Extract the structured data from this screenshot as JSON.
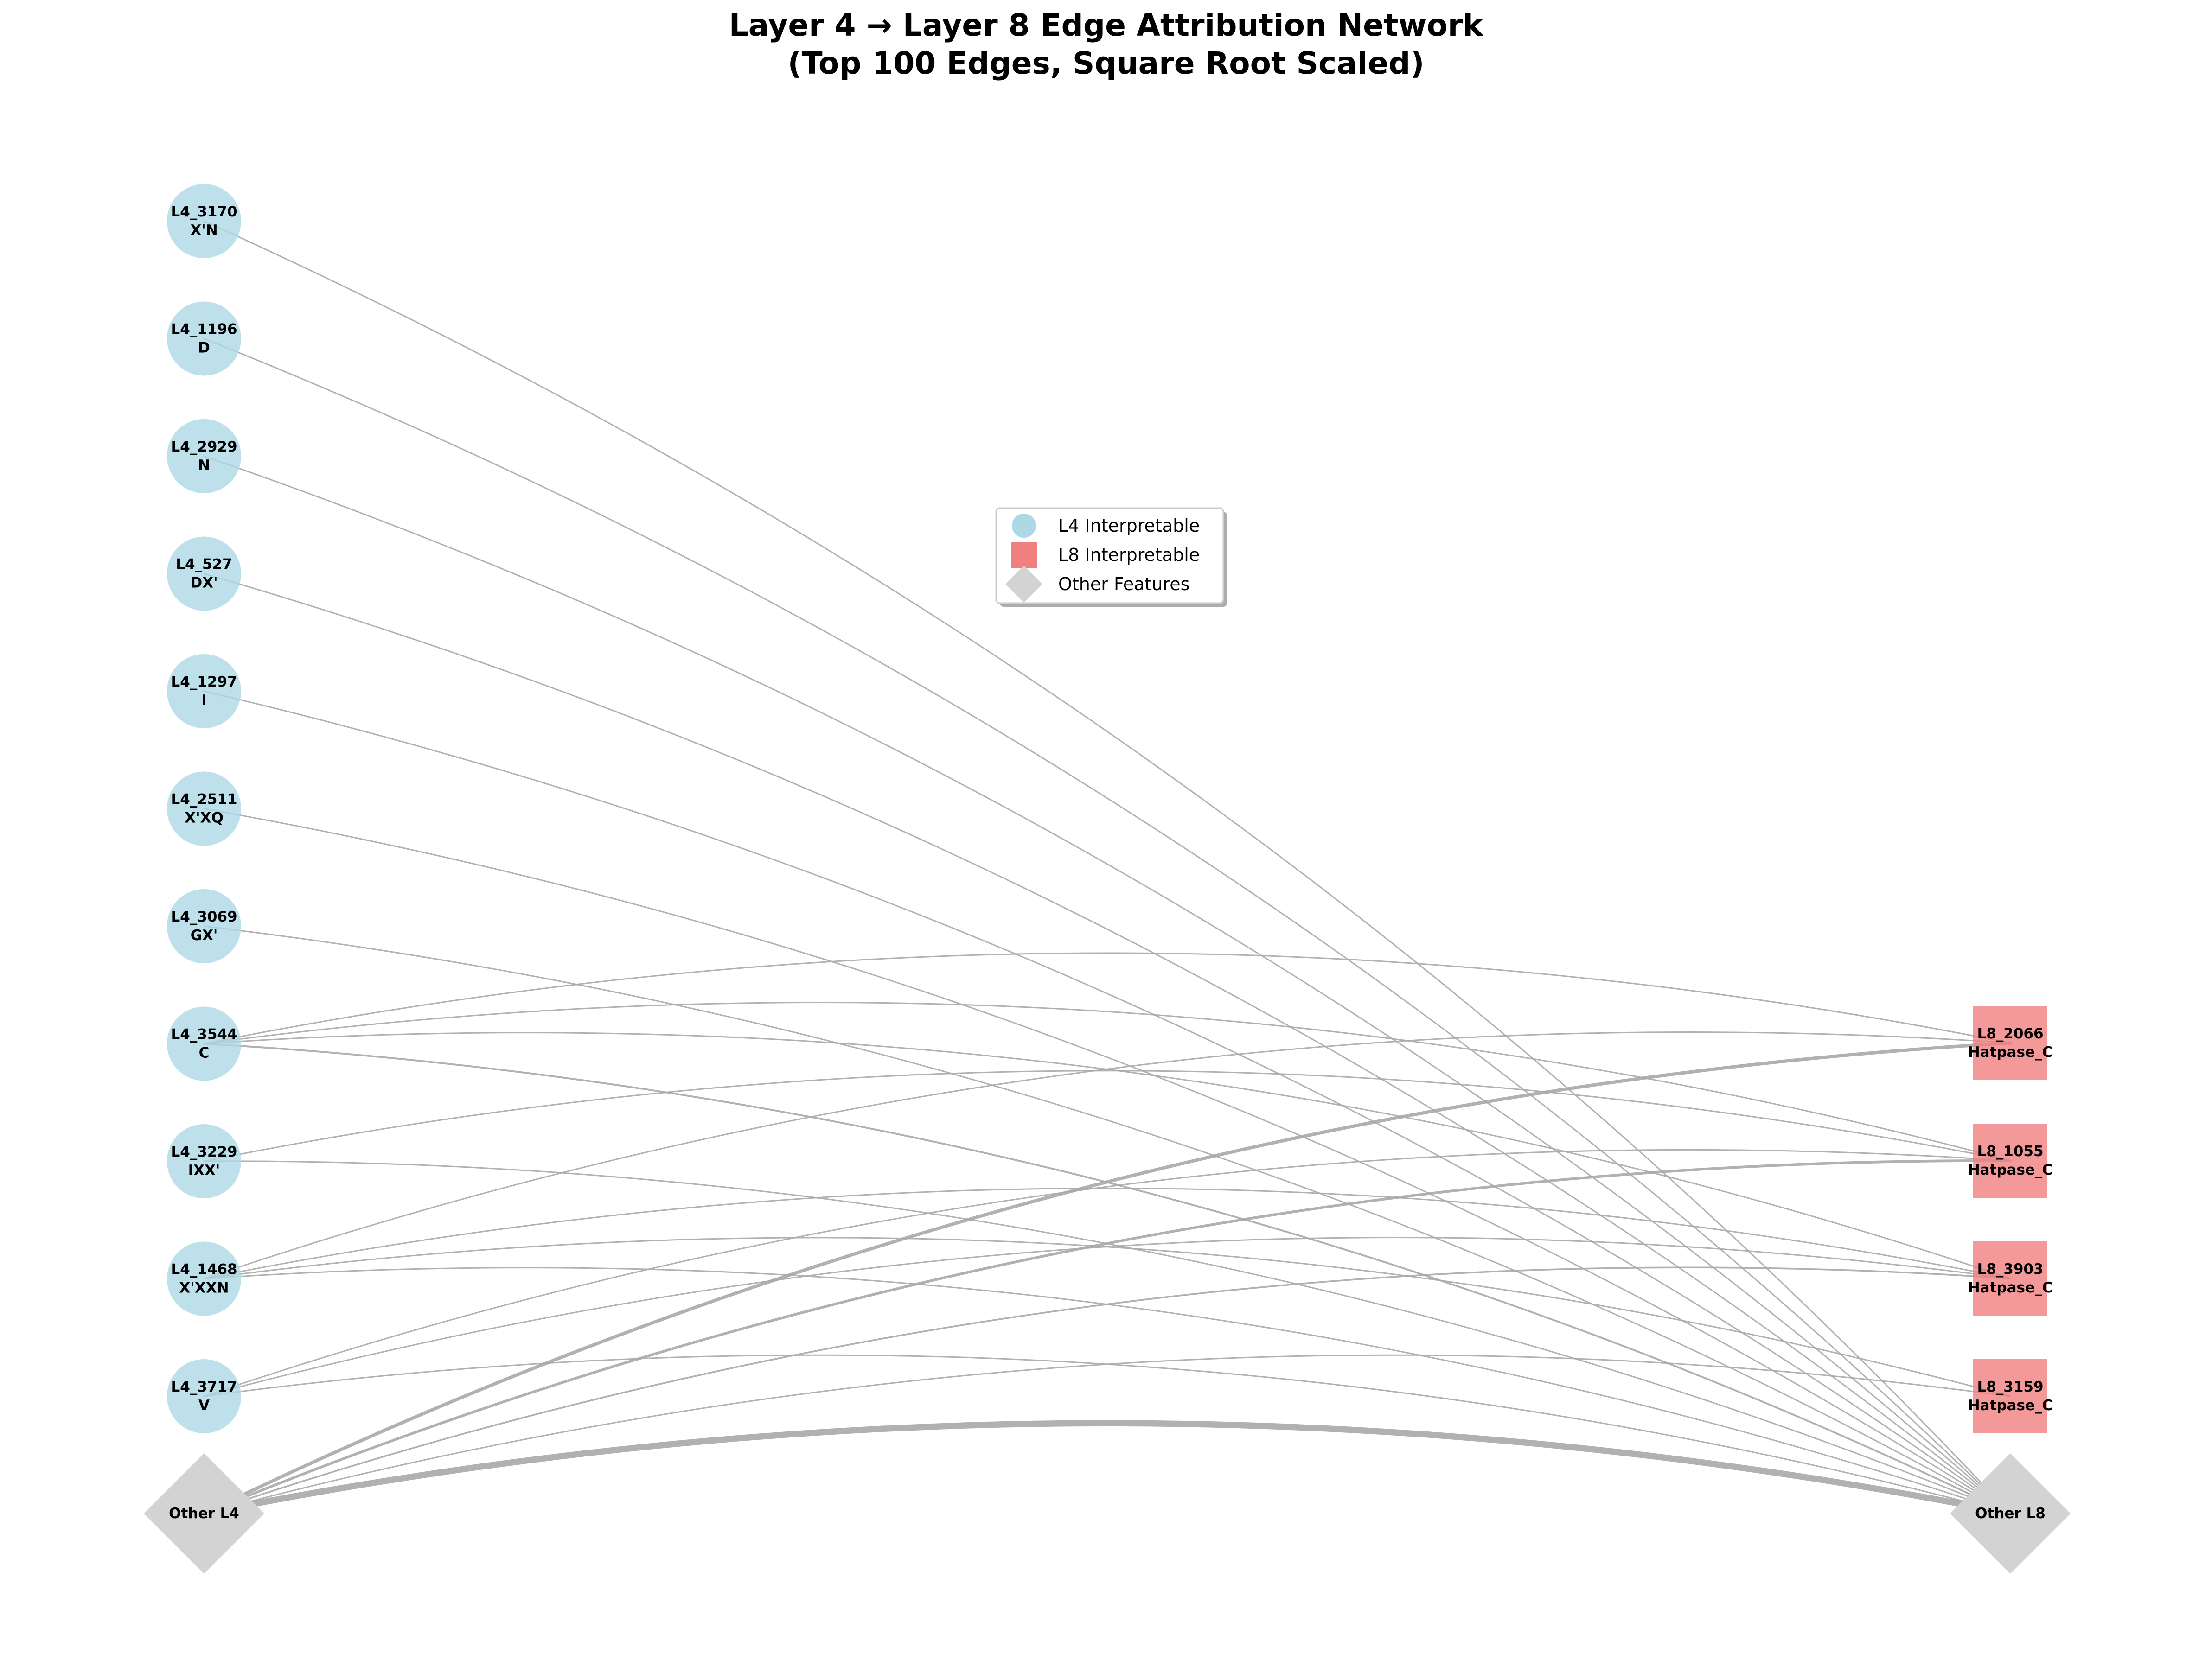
{
  "title": {
    "line1": "Layer 4 → Layer 8 Edge Attribution Network",
    "line2": "(Top 100 Edges, Square Root Scaled)"
  },
  "colors": {
    "l4_node": "#add8e6",
    "l8_node": "#f08080",
    "other_node": "#d3d3d3",
    "edge": "#a9a9a9"
  },
  "legend": [
    {
      "label": "L4 Interpretable",
      "marker": "circle",
      "color": "#add8e6"
    },
    {
      "label": "L8 Interpretable",
      "marker": "square",
      "color": "#f08080"
    },
    {
      "label": "Other Features",
      "marker": "diamond",
      "color": "#d3d3d3"
    }
  ],
  "l4_nodes": [
    {
      "id": "L4_3170",
      "name": "L4_3170",
      "sub": "X'N"
    },
    {
      "id": "L4_1196",
      "name": "L4_1196",
      "sub": "D"
    },
    {
      "id": "L4_2929",
      "name": "L4_2929",
      "sub": "N"
    },
    {
      "id": "L4_527",
      "name": "L4_527",
      "sub": "DX'"
    },
    {
      "id": "L4_1297",
      "name": "L4_1297",
      "sub": "I"
    },
    {
      "id": "L4_2511",
      "name": "L4_2511",
      "sub": "X'XQ"
    },
    {
      "id": "L4_3069",
      "name": "L4_3069",
      "sub": "GX'"
    },
    {
      "id": "L4_3544",
      "name": "L4_3544",
      "sub": "C"
    },
    {
      "id": "L4_3229",
      "name": "L4_3229",
      "sub": "IXX'"
    },
    {
      "id": "L4_1468",
      "name": "L4_1468",
      "sub": "X'XXN"
    },
    {
      "id": "L4_3717",
      "name": "L4_3717",
      "sub": "V"
    }
  ],
  "l8_nodes": [
    {
      "id": "L8_2066",
      "name": "L8_2066",
      "sub": "Hatpase_C"
    },
    {
      "id": "L8_1055",
      "name": "L8_1055",
      "sub": "Hatpase_C"
    },
    {
      "id": "L8_3903",
      "name": "L8_3903",
      "sub": "Hatpase_C"
    },
    {
      "id": "L8_3159",
      "name": "L8_3159",
      "sub": "Hatpase_C"
    }
  ],
  "other_l4": {
    "id": "Other_L4",
    "name": "Other L4"
  },
  "other_l8": {
    "id": "Other_L8",
    "name": "Other L8"
  },
  "edges": [
    {
      "from": "L4_3170",
      "to": "Other_L8",
      "weight": 1
    },
    {
      "from": "L4_1196",
      "to": "Other_L8",
      "weight": 1
    },
    {
      "from": "L4_2929",
      "to": "Other_L8",
      "weight": 1
    },
    {
      "from": "L4_527",
      "to": "Other_L8",
      "weight": 1
    },
    {
      "from": "L4_1297",
      "to": "Other_L8",
      "weight": 1
    },
    {
      "from": "L4_2511",
      "to": "Other_L8",
      "weight": 1
    },
    {
      "from": "L4_3069",
      "to": "Other_L8",
      "weight": 1
    },
    {
      "from": "L4_3544",
      "to": "L8_2066",
      "weight": 1
    },
    {
      "from": "L4_3544",
      "to": "L8_1055",
      "weight": 1
    },
    {
      "from": "L4_3544",
      "to": "L8_3903",
      "weight": 1
    },
    {
      "from": "L4_3544",
      "to": "Other_L8",
      "weight": 1.3
    },
    {
      "from": "L4_3229",
      "to": "L8_1055",
      "weight": 1
    },
    {
      "from": "L4_3229",
      "to": "Other_L8",
      "weight": 1
    },
    {
      "from": "L4_1468",
      "to": "L8_2066",
      "weight": 1
    },
    {
      "from": "L4_1468",
      "to": "L8_3903",
      "weight": 1
    },
    {
      "from": "L4_1468",
      "to": "L8_3159",
      "weight": 1
    },
    {
      "from": "L4_1468",
      "to": "Other_L8",
      "weight": 1
    },
    {
      "from": "L4_3717",
      "to": "L8_1055",
      "weight": 1
    },
    {
      "from": "L4_3717",
      "to": "L8_3903",
      "weight": 1
    },
    {
      "from": "L4_3717",
      "to": "Other_L8",
      "weight": 1
    },
    {
      "from": "Other_L4",
      "to": "L8_2066",
      "weight": 2.4
    },
    {
      "from": "Other_L4",
      "to": "L8_1055",
      "weight": 1.9
    },
    {
      "from": "Other_L4",
      "to": "L8_3903",
      "weight": 1.2
    },
    {
      "from": "Other_L4",
      "to": "L8_3159",
      "weight": 1
    },
    {
      "from": "Other_L4",
      "to": "Other_L8",
      "weight": 4.5
    }
  ]
}
